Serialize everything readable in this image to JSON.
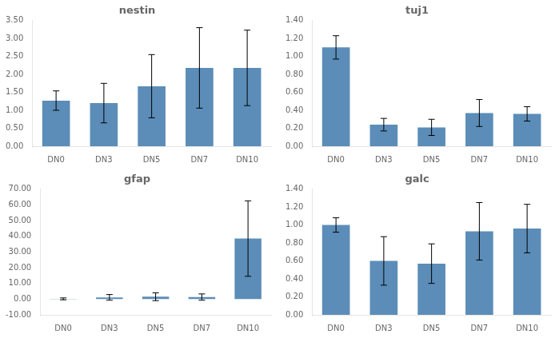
{
  "chart_data": [
    {
      "type": "bar",
      "title": "nestin",
      "categories": [
        "DN0",
        "DN3",
        "DN5",
        "DN7",
        "DN10"
      ],
      "values": [
        1.27,
        1.2,
        1.67,
        2.18,
        2.18
      ],
      "errors": [
        0.27,
        0.55,
        0.88,
        1.12,
        1.05
      ],
      "color": "#5B8DB8",
      "grid": false,
      "ylim": [
        0,
        3.5
      ],
      "yticks": [
        {
          "value": 0,
          "label": "0.00"
        },
        {
          "value": 0.5,
          "label": "0.50"
        },
        {
          "value": 1,
          "label": "1.00"
        },
        {
          "value": 1.5,
          "label": "1.50"
        },
        {
          "value": 2,
          "label": "2.00"
        },
        {
          "value": 2.5,
          "label": "2.50"
        },
        {
          "value": 3,
          "label": "3.00"
        },
        {
          "value": 3.5,
          "label": "3.50"
        }
      ]
    },
    {
      "type": "bar",
      "title": "tuj1",
      "categories": [
        "DN0",
        "DN3",
        "DN5",
        "DN7",
        "DN10"
      ],
      "values": [
        1.1,
        0.24,
        0.21,
        0.37,
        0.36
      ],
      "errors": [
        0.13,
        0.07,
        0.09,
        0.15,
        0.08
      ],
      "color": "#5B8DB8",
      "grid": false,
      "ylim": [
        0,
        1.4
      ],
      "yticks": [
        {
          "value": 0,
          "label": "0.00"
        },
        {
          "value": 0.2,
          "label": "0.20"
        },
        {
          "value": 0.4,
          "label": "0.40"
        },
        {
          "value": 0.6,
          "label": "0.60"
        },
        {
          "value": 0.8,
          "label": "0.80"
        },
        {
          "value": 1,
          "label": "1.00"
        },
        {
          "value": 1.2,
          "label": "1.20"
        },
        {
          "value": 1.4,
          "label": "1.40"
        }
      ]
    },
    {
      "type": "bar",
      "title": "gfap",
      "categories": [
        "DN0",
        "DN3",
        "DN5",
        "DN7",
        "DN10"
      ],
      "values": [
        0.15,
        1.1,
        1.5,
        1.3,
        38.5
      ],
      "errors": [
        0.6,
        1.8,
        2.5,
        2.0,
        24.0
      ],
      "color": "#5B8DB8",
      "grid": false,
      "ylim": [
        -10,
        70
      ],
      "yticks": [
        {
          "value": -10,
          "label": "-10.00"
        },
        {
          "value": 0,
          "label": "0.00"
        },
        {
          "value": 10,
          "label": "10.00"
        },
        {
          "value": 20,
          "label": "20.00"
        },
        {
          "value": 30,
          "label": "30.00"
        },
        {
          "value": 40,
          "label": "40.00"
        },
        {
          "value": 50,
          "label": "50.00"
        },
        {
          "value": 60,
          "label": "60.00"
        },
        {
          "value": 70,
          "label": "70.00"
        }
      ]
    },
    {
      "type": "bar",
      "title": "galc",
      "categories": [
        "DN0",
        "DN3",
        "DN5",
        "DN7",
        "DN10"
      ],
      "values": [
        1.0,
        0.6,
        0.57,
        0.93,
        0.96
      ],
      "errors": [
        0.08,
        0.27,
        0.22,
        0.32,
        0.27
      ],
      "color": "#5B8DB8",
      "grid": false,
      "ylim": [
        0,
        1.4
      ],
      "yticks": [
        {
          "value": 0,
          "label": "0.00"
        },
        {
          "value": 0.2,
          "label": "0.20"
        },
        {
          "value": 0.4,
          "label": "0.40"
        },
        {
          "value": 0.6,
          "label": "0.60"
        },
        {
          "value": 0.8,
          "label": "0.80"
        },
        {
          "value": 1,
          "label": "1.00"
        },
        {
          "value": 1.2,
          "label": "1.20"
        },
        {
          "value": 1.4,
          "label": "1.40"
        }
      ]
    }
  ]
}
